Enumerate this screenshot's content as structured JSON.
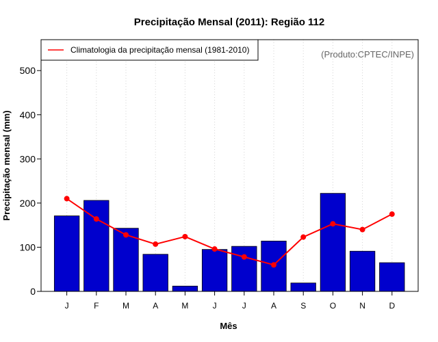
{
  "chart_data": {
    "type": "bar",
    "title": "Precipitação Mensal (2011): Região 112",
    "xlabel": "Mês",
    "ylabel": "Precipitação mensal (mm)",
    "ylim": [
      0,
      570
    ],
    "yticks": [
      0,
      100,
      200,
      300,
      400,
      500
    ],
    "categories": [
      "J",
      "F",
      "M",
      "A",
      "M",
      "J",
      "J",
      "A",
      "S",
      "O",
      "N",
      "D"
    ],
    "grid": "vertical dotted",
    "series": [
      {
        "name": "Precipitação mensal (2011)",
        "kind": "bar",
        "color": "#0000cd",
        "values": [
          171,
          206,
          143,
          84,
          12,
          95,
          102,
          114,
          19,
          222,
          91,
          65
        ]
      },
      {
        "name": "Climatologia da precipitação mensal (1981-2010)",
        "kind": "line",
        "color": "#ff0000",
        "values": [
          210,
          164,
          128,
          107,
          124,
          96,
          78,
          60,
          123,
          153,
          140,
          175
        ]
      }
    ],
    "legend": {
      "position": "top-left",
      "entries": [
        "Climatologia da precipitação mensal (1981-2010)"
      ]
    },
    "annotation": "(Produto:CPTEC/INPE)"
  }
}
